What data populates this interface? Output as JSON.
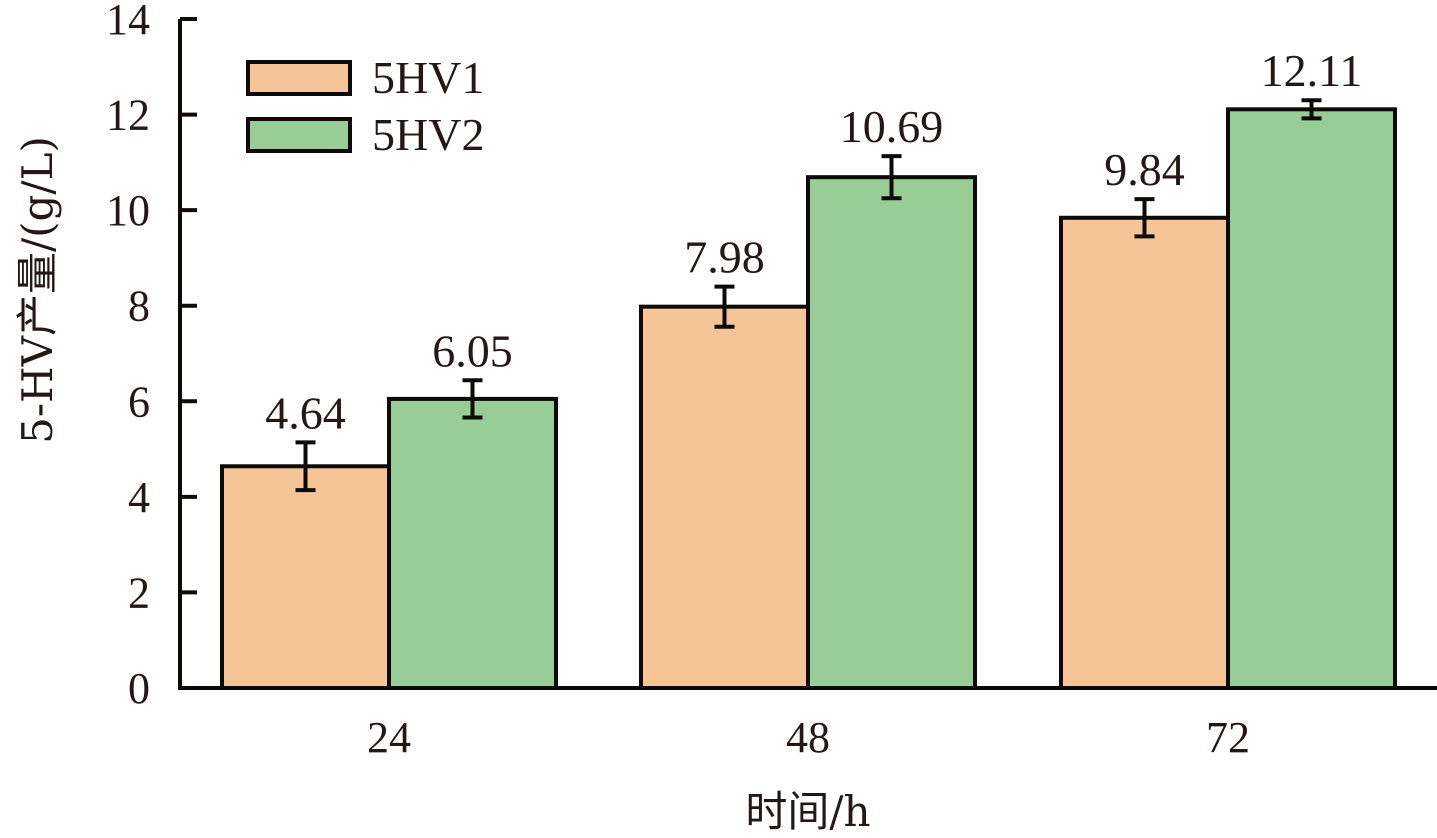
{
  "chart_data": {
    "type": "bar",
    "title": "",
    "xlabel": "时间/h",
    "ylabel": "5-HV产量/(g/L)",
    "categories": [
      "24",
      "48",
      "72"
    ],
    "ylim": [
      0,
      14
    ],
    "yticks": [
      "0",
      "2",
      "4",
      "6",
      "8",
      "10",
      "12",
      "14"
    ],
    "grid": false,
    "legend_position": "top-left",
    "series": [
      {
        "name": "5HV1",
        "color": "#F5C497",
        "values": [
          4.64,
          7.98,
          9.84
        ],
        "errors": [
          0.5,
          0.42,
          0.39
        ],
        "labels": [
          "4.64",
          "7.98",
          "9.84"
        ]
      },
      {
        "name": "5HV2",
        "color": "#98CD97",
        "values": [
          6.05,
          10.69,
          12.11
        ],
        "errors": [
          0.39,
          0.44,
          0.19
        ],
        "labels": [
          "6.05",
          "10.69",
          "12.11"
        ]
      }
    ]
  }
}
